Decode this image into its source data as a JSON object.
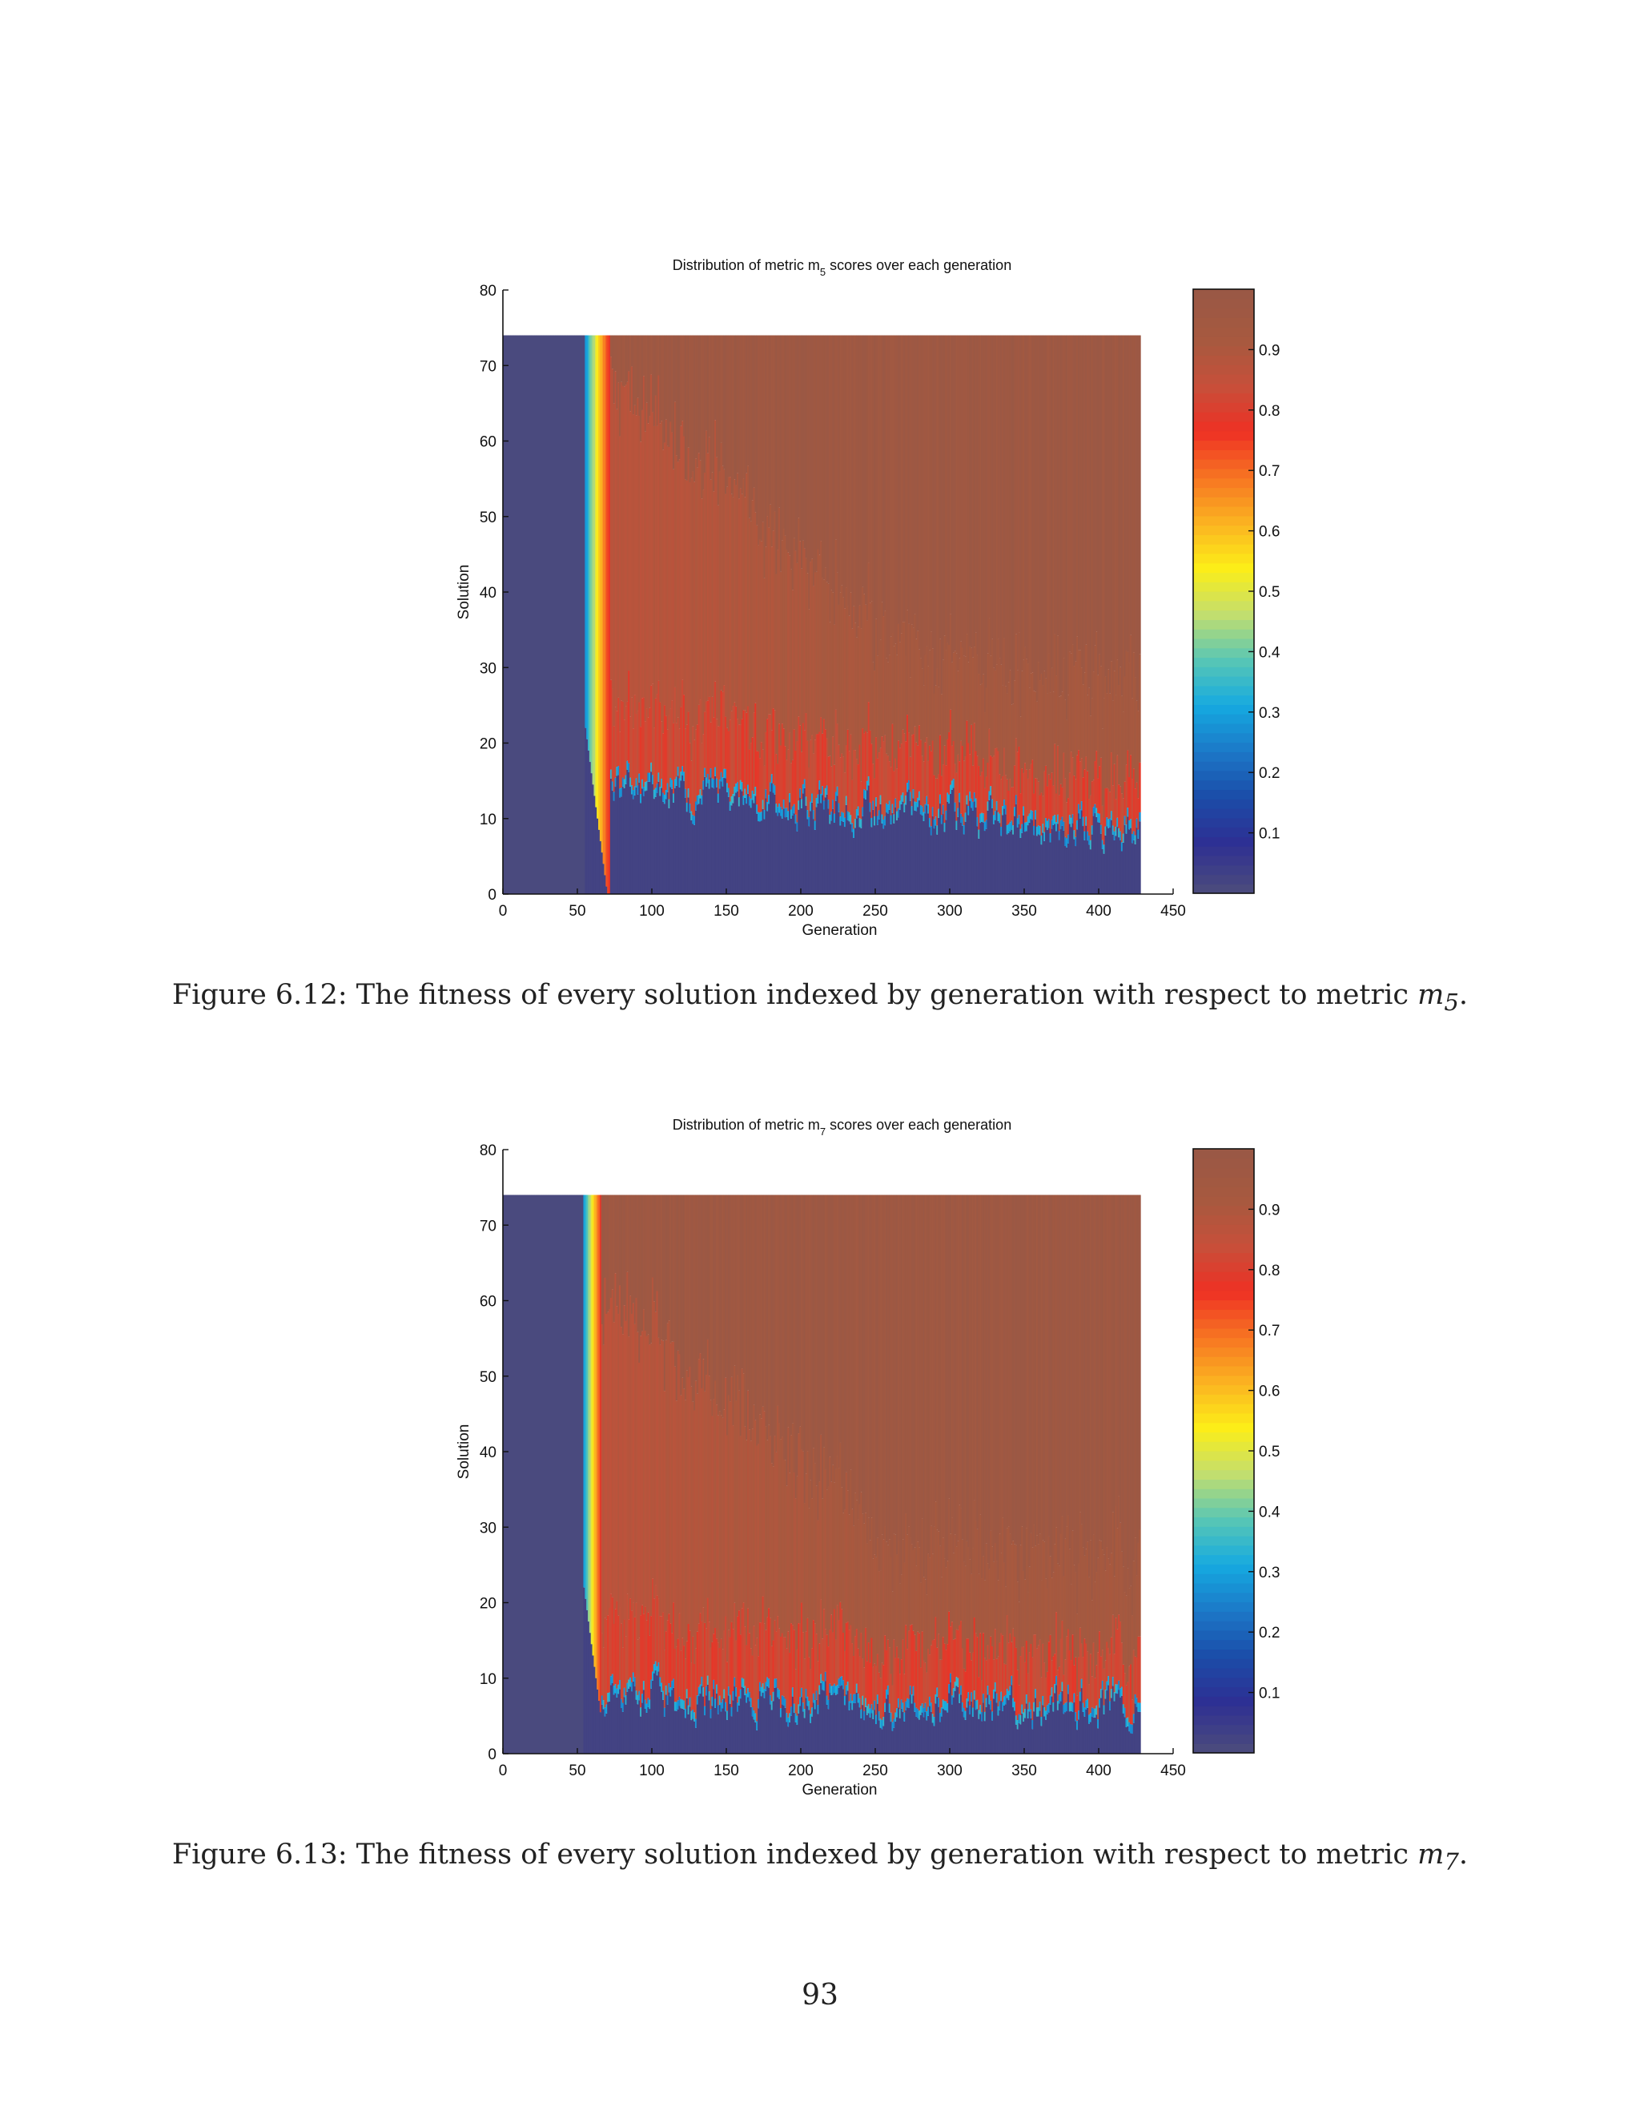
{
  "colors": {
    "colormap": [
      "#4a4a7e",
      "#2e2f93",
      "#1b4ca8",
      "#1c78c8",
      "#15a9e0",
      "#58c6b5",
      "#c3de6e",
      "#fcee18",
      "#fbb321",
      "#f77422",
      "#ee3024",
      "#c6503a",
      "#a7593f",
      "#9a5845"
    ],
    "background": "#ffffff"
  },
  "figures": [
    {
      "caption_prefix": "Figure 6.12: The fitness of every solution indexed by generation with respect to metric",
      "caption_math_base": "m",
      "caption_math_sub": "5",
      "caption_suffix": ".",
      "chart_data": {
        "type": "heatmap",
        "title_pre": "Distribution of metric m",
        "title_sub": "5",
        "title_post": " scores over each generation",
        "xlabel": "Generation",
        "ylabel": "Solution",
        "xlim": [
          0,
          450
        ],
        "ylim": [
          0,
          80
        ],
        "xticks": [
          "0",
          "50",
          "100",
          "150",
          "200",
          "250",
          "300",
          "350",
          "400",
          "450"
        ],
        "yticks": [
          "0",
          "10",
          "20",
          "30",
          "40",
          "50",
          "60",
          "70",
          "80"
        ],
        "colorbar_ticks": [
          "0.1",
          "0.2",
          "0.3",
          "0.4",
          "0.5",
          "0.6",
          "0.7",
          "0.8",
          "0.9"
        ],
        "generations": 428,
        "solutions": 74,
        "zero_until_generation": 55,
        "high_score_from_generation": 72,
        "low_band_top_early": 14,
        "low_band_top_late": 8
      }
    },
    {
      "caption_prefix": "Figure 6.13: The fitness of every solution indexed by generation with respect to metric",
      "caption_math_base": "m",
      "caption_math_sub": "7",
      "caption_suffix": ".",
      "chart_data": {
        "type": "heatmap",
        "title_pre": "Distribution of metric m",
        "title_sub": "7",
        "title_post": " scores over each generation",
        "xlabel": "Generation",
        "ylabel": "Solution",
        "xlim": [
          0,
          450
        ],
        "ylim": [
          0,
          80
        ],
        "xticks": [
          "0",
          "50",
          "100",
          "150",
          "200",
          "250",
          "300",
          "350",
          "400",
          "450"
        ],
        "yticks": [
          "0",
          "10",
          "20",
          "30",
          "40",
          "50",
          "60",
          "70",
          "80"
        ],
        "colorbar_ticks": [
          "0.1",
          "0.2",
          "0.3",
          "0.4",
          "0.5",
          "0.6",
          "0.7",
          "0.8",
          "0.9"
        ],
        "generations": 428,
        "solutions": 74,
        "zero_until_generation": 54,
        "high_score_from_generation": 66,
        "low_band_top_early": 7,
        "low_band_top_late": 6
      }
    }
  ],
  "page_number": "93"
}
